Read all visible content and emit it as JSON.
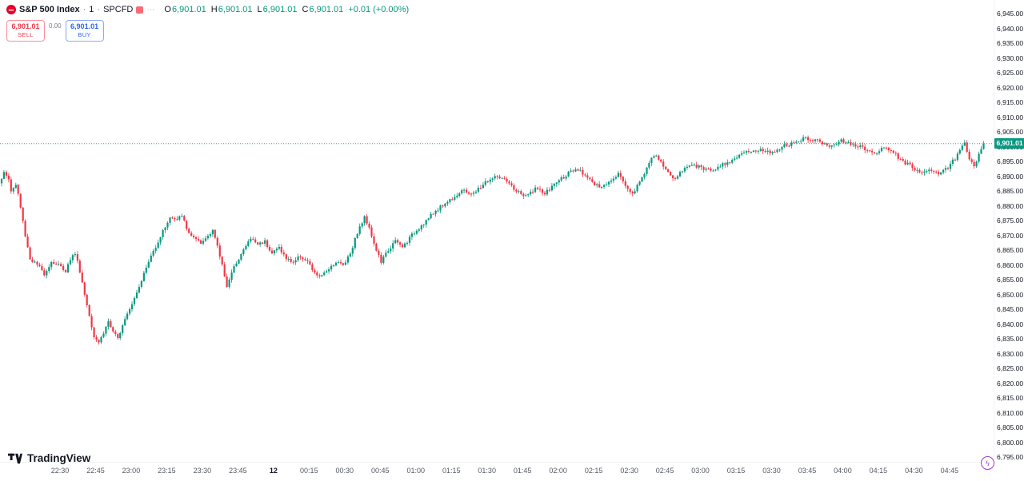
{
  "colors": {
    "up": "#089981",
    "down": "#f23645",
    "buy_blue": "#2962ff",
    "sell_red": "#f23645",
    "axis_text": "#131722",
    "price_tag_bg": "#089981",
    "logo_red": "#e4002b",
    "corner_purple": "#a137c8"
  },
  "legend": {
    "symbol": "S&P 500 Index",
    "separator": "·",
    "interval": "1",
    "exchange": "SPCFD",
    "ohlc": {
      "o_label": "O",
      "o": "6,901.01",
      "h_label": "H",
      "h": "6,901.01",
      "l_label": "L",
      "l": "6,901.01",
      "c_label": "C",
      "c": "6,901.01",
      "change": "+0.01 (+0.00%)"
    }
  },
  "icons": {
    "more_glyph": "⋯",
    "corner_glyph": "ϟ"
  },
  "trade_panel": {
    "sell_price": "6,901.01",
    "sell_label": "SELL",
    "spread": "0.00",
    "buy_price": "6,901.01",
    "buy_label": "BUY"
  },
  "price_axis": {
    "current_price_label": "6,901.01",
    "labels": [
      "6,945.00",
      "6,940.00",
      "6,935.00",
      "6,930.00",
      "6,925.00",
      "6,920.00",
      "6,915.00",
      "6,910.00",
      "6,905.00",
      "6,900.00",
      "6,895.00",
      "6,890.00",
      "6,885.00",
      "6,880.00",
      "6,875.00",
      "6,870.00",
      "6,865.00",
      "6,860.00",
      "6,855.00",
      "6,850.00",
      "6,845.00",
      "6,840.00",
      "6,835.00",
      "6,830.00",
      "6,825.00",
      "6,820.00",
      "6,815.00",
      "6,810.00",
      "6,805.00",
      "6,800.00",
      "6,795.00"
    ]
  },
  "time_axis": {
    "labels": [
      {
        "text": "22:30",
        "t": 25
      },
      {
        "text": "22:45",
        "t": 40
      },
      {
        "text": "23:00",
        "t": 55
      },
      {
        "text": "23:15",
        "t": 70
      },
      {
        "text": "23:30",
        "t": 85
      },
      {
        "text": "23:45",
        "t": 100
      },
      {
        "text": "12",
        "t": 115,
        "bold": true
      },
      {
        "text": "00:15",
        "t": 130
      },
      {
        "text": "00:30",
        "t": 145
      },
      {
        "text": "00:45",
        "t": 160
      },
      {
        "text": "01:00",
        "t": 175
      },
      {
        "text": "01:15",
        "t": 190
      },
      {
        "text": "01:30",
        "t": 205
      },
      {
        "text": "01:45",
        "t": 220
      },
      {
        "text": "02:00",
        "t": 235
      },
      {
        "text": "02:15",
        "t": 250
      },
      {
        "text": "02:30",
        "t": 265
      },
      {
        "text": "02:45",
        "t": 280
      },
      {
        "text": "03:00",
        "t": 295
      },
      {
        "text": "03:15",
        "t": 310
      },
      {
        "text": "03:30",
        "t": 325
      },
      {
        "text": "03:45",
        "t": 340
      },
      {
        "text": "04:00",
        "t": 355
      },
      {
        "text": "04:15",
        "t": 370
      },
      {
        "text": "04:30",
        "t": 385
      },
      {
        "text": "04:45",
        "t": 400
      }
    ]
  },
  "footer": {
    "brand": "TradingView"
  },
  "chart_data": {
    "type": "candlestick",
    "title": "S&P 500 Index · 1 · SPCFD",
    "interval_minutes": 1,
    "ylim": [
      6795,
      6945
    ],
    "y_tick_step": 5,
    "grid": false,
    "last_price": 6901.01,
    "last_price_line": "dotted-green",
    "time_minutes_are_offsets_from": "22:05",
    "waypoints": [
      [
        0,
        6888
      ],
      [
        2,
        6891
      ],
      [
        4,
        6889
      ],
      [
        5,
        6885
      ],
      [
        7,
        6887
      ],
      [
        8,
        6884
      ],
      [
        11,
        6870
      ],
      [
        13,
        6862
      ],
      [
        16,
        6860
      ],
      [
        19,
        6857
      ],
      [
        22,
        6861
      ],
      [
        25,
        6860
      ],
      [
        28,
        6858
      ],
      [
        30,
        6862
      ],
      [
        32,
        6864
      ],
      [
        34,
        6858
      ],
      [
        36,
        6850
      ],
      [
        38,
        6843
      ],
      [
        40,
        6836
      ],
      [
        42,
        6834
      ],
      [
        44,
        6837
      ],
      [
        46,
        6841
      ],
      [
        48,
        6837
      ],
      [
        50,
        6835
      ],
      [
        52,
        6840
      ],
      [
        54,
        6844
      ],
      [
        56,
        6847
      ],
      [
        58,
        6851
      ],
      [
        61,
        6857
      ],
      [
        64,
        6863
      ],
      [
        67,
        6868
      ],
      [
        70,
        6873
      ],
      [
        72,
        6876
      ],
      [
        75,
        6875
      ],
      [
        77,
        6877
      ],
      [
        79,
        6872
      ],
      [
        82,
        6869
      ],
      [
        85,
        6867
      ],
      [
        88,
        6870
      ],
      [
        90,
        6872
      ],
      [
        92,
        6866
      ],
      [
        94,
        6860
      ],
      [
        96,
        6853
      ],
      [
        98,
        6857
      ],
      [
        100,
        6861
      ],
      [
        103,
        6865
      ],
      [
        106,
        6869
      ],
      [
        109,
        6867
      ],
      [
        112,
        6868
      ],
      [
        115,
        6864
      ],
      [
        118,
        6866
      ],
      [
        121,
        6862
      ],
      [
        124,
        6861
      ],
      [
        127,
        6863
      ],
      [
        130,
        6861
      ],
      [
        133,
        6857
      ],
      [
        136,
        6856
      ],
      [
        139,
        6859
      ],
      [
        142,
        6861
      ],
      [
        145,
        6860
      ],
      [
        148,
        6864
      ],
      [
        151,
        6871
      ],
      [
        154,
        6876
      ],
      [
        156,
        6873
      ],
      [
        158,
        6867
      ],
      [
        161,
        6861
      ],
      [
        164,
        6865
      ],
      [
        167,
        6868
      ],
      [
        170,
        6866
      ],
      [
        173,
        6869
      ],
      [
        175,
        6871
      ],
      [
        180,
        6875
      ],
      [
        185,
        6879
      ],
      [
        190,
        6882
      ],
      [
        195,
        6885
      ],
      [
        200,
        6884
      ],
      [
        205,
        6888
      ],
      [
        210,
        6890
      ],
      [
        214,
        6888
      ],
      [
        218,
        6885
      ],
      [
        222,
        6883
      ],
      [
        226,
        6886
      ],
      [
        230,
        6884
      ],
      [
        235,
        6888
      ],
      [
        240,
        6891
      ],
      [
        244,
        6892
      ],
      [
        248,
        6890
      ],
      [
        251,
        6887
      ],
      [
        254,
        6886
      ],
      [
        258,
        6889
      ],
      [
        261,
        6891
      ],
      [
        264,
        6887
      ],
      [
        267,
        6884
      ],
      [
        270,
        6888
      ],
      [
        273,
        6893
      ],
      [
        276,
        6897
      ],
      [
        279,
        6895
      ],
      [
        282,
        6891
      ],
      [
        285,
        6889
      ],
      [
        288,
        6892
      ],
      [
        291,
        6894
      ],
      [
        295,
        6893
      ],
      [
        300,
        6892
      ],
      [
        305,
        6894
      ],
      [
        310,
        6896
      ],
      [
        315,
        6898
      ],
      [
        320,
        6899
      ],
      [
        325,
        6898
      ],
      [
        330,
        6900
      ],
      [
        335,
        6901
      ],
      [
        340,
        6903
      ],
      [
        345,
        6902
      ],
      [
        350,
        6900
      ],
      [
        355,
        6902
      ],
      [
        360,
        6901
      ],
      [
        365,
        6899
      ],
      [
        370,
        6898
      ],
      [
        373,
        6900
      ],
      [
        377,
        6898
      ],
      [
        381,
        6895
      ],
      [
        385,
        6893
      ],
      [
        389,
        6891
      ],
      [
        393,
        6892
      ],
      [
        397,
        6891
      ],
      [
        400,
        6893
      ],
      [
        403,
        6896
      ],
      [
        405,
        6899
      ],
      [
        407,
        6901
      ],
      [
        409,
        6896
      ],
      [
        411,
        6893
      ],
      [
        413,
        6897
      ],
      [
        415,
        6901.01
      ]
    ]
  }
}
